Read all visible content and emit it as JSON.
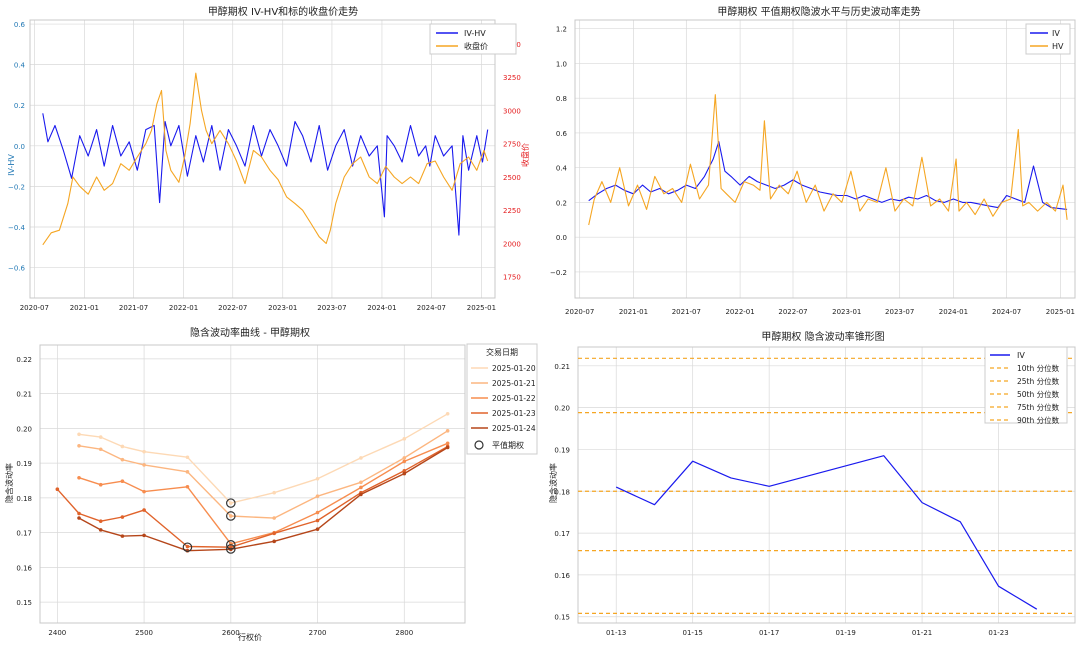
{
  "colors": {
    "iv_blue": "#1a1aee",
    "close_orange": "#f5a623",
    "red_axis": "#e41a1c",
    "blue_axis": "#1f77b4",
    "grid": "#d9d9d9",
    "frame": "#c8c8c8",
    "smile_palette": [
      "#fdd9b5",
      "#fcb680",
      "#f78d4f",
      "#e0632b",
      "#b5461a"
    ]
  },
  "chart_data": [
    {
      "id": "p1",
      "type": "line",
      "title": "甲醇期权 IV-HV和标的收盘价走势",
      "ylabel_left": "IV-HV",
      "ylabel_right": "收盘价",
      "left_ylim": [
        -0.75,
        0.62
      ],
      "left_ticks": [
        -0.6,
        -0.4,
        -0.2,
        0.0,
        0.2,
        0.4,
        0.6
      ],
      "left_tick_labels": [
        "−0.6",
        "−0.4",
        "−0.2",
        "0.0",
        "0.2",
        "0.4",
        "0.6"
      ],
      "right_ylim": [
        1590,
        3680
      ],
      "right_ticks": [
        1750,
        2000,
        2250,
        2500,
        2750,
        3000,
        3250,
        3500
      ],
      "x_range": [
        "2020-06-15",
        "2025-02-20"
      ],
      "x_ticks": [
        "2020-07",
        "2021-01",
        "2021-07",
        "2022-01",
        "2022-07",
        "2023-01",
        "2023-07",
        "2024-01",
        "2024-07",
        "2025-01"
      ],
      "legend": [
        "IV-HV",
        "收盘价"
      ],
      "legend_position": "top-right",
      "grid": true,
      "series_iv_hv": {
        "x": [
          "2020-08-01",
          "2020-08-20",
          "2020-09-15",
          "2020-10-15",
          "2020-11-15",
          "2020-12-15",
          "2021-01-15",
          "2021-02-15",
          "2021-03-15",
          "2021-04-15",
          "2021-05-15",
          "2021-06-15",
          "2021-07-15",
          "2021-08-15",
          "2021-09-15",
          "2021-10-05",
          "2021-10-25",
          "2021-11-15",
          "2021-12-15",
          "2022-01-15",
          "2022-02-15",
          "2022-03-15",
          "2022-04-15",
          "2022-05-15",
          "2022-06-15",
          "2022-07-15",
          "2022-08-15",
          "2022-09-15",
          "2022-10-15",
          "2022-11-15",
          "2022-12-15",
          "2023-01-15",
          "2023-02-15",
          "2023-03-15",
          "2023-04-15",
          "2023-05-15",
          "2023-06-15",
          "2023-07-15",
          "2023-08-15",
          "2023-09-15",
          "2023-10-15",
          "2023-11-15",
          "2023-12-15",
          "2024-01-10",
          "2024-01-20",
          "2024-02-15",
          "2024-03-15",
          "2024-04-15",
          "2024-05-15",
          "2024-06-10",
          "2024-06-25",
          "2024-07-15",
          "2024-08-15",
          "2024-09-15",
          "2024-10-10",
          "2024-10-25",
          "2024-11-15",
          "2024-12-15",
          "2025-01-05",
          "2025-01-24"
        ],
        "values": [
          0.16,
          0.02,
          0.1,
          -0.02,
          -0.16,
          0.05,
          -0.05,
          0.08,
          -0.1,
          0.1,
          -0.05,
          0.02,
          -0.12,
          0.08,
          0.1,
          -0.28,
          0.12,
          0.0,
          0.1,
          -0.15,
          0.05,
          -0.08,
          0.1,
          -0.12,
          0.08,
          0.0,
          -0.1,
          0.1,
          -0.05,
          0.08,
          0.0,
          -0.1,
          0.12,
          0.05,
          -0.08,
          0.1,
          -0.12,
          0.0,
          0.08,
          -0.1,
          0.05,
          -0.05,
          0.0,
          -0.35,
          0.05,
          0.0,
          -0.08,
          0.1,
          -0.05,
          0.0,
          -0.1,
          0.05,
          -0.05,
          0.0,
          -0.44,
          0.05,
          -0.12,
          0.05,
          -0.08,
          0.08
        ]
      },
      "series_close": {
        "x": [
          "2020-08-01",
          "2020-09-01",
          "2020-10-01",
          "2020-11-01",
          "2020-11-20",
          "2020-12-15",
          "2021-01-15",
          "2021-02-15",
          "2021-03-15",
          "2021-04-15",
          "2021-05-15",
          "2021-06-15",
          "2021-07-15",
          "2021-08-15",
          "2021-09-05",
          "2021-09-25",
          "2021-10-12",
          "2021-10-28",
          "2021-11-15",
          "2021-12-15",
          "2022-01-05",
          "2022-01-25",
          "2022-02-15",
          "2022-03-08",
          "2022-03-25",
          "2022-04-15",
          "2022-05-15",
          "2022-06-15",
          "2022-07-15",
          "2022-08-15",
          "2022-09-15",
          "2022-10-15",
          "2022-11-15",
          "2022-12-15",
          "2023-01-15",
          "2023-02-15",
          "2023-03-15",
          "2023-04-15",
          "2023-05-15",
          "2023-06-10",
          "2023-06-25",
          "2023-07-15",
          "2023-08-15",
          "2023-09-15",
          "2023-10-15",
          "2023-11-15",
          "2023-12-15",
          "2024-01-15",
          "2024-02-15",
          "2024-03-15",
          "2024-04-15",
          "2024-05-15",
          "2024-06-15",
          "2024-07-15",
          "2024-08-15",
          "2024-09-15",
          "2024-10-15",
          "2024-11-15",
          "2024-12-15",
          "2025-01-10",
          "2025-01-24"
        ],
        "values": [
          1990,
          2080,
          2100,
          2300,
          2500,
          2430,
          2370,
          2500,
          2400,
          2450,
          2600,
          2550,
          2650,
          2750,
          2850,
          3050,
          3150,
          2700,
          2550,
          2460,
          2650,
          2900,
          3280,
          3000,
          2850,
          2750,
          2850,
          2750,
          2620,
          2450,
          2700,
          2650,
          2550,
          2480,
          2350,
          2300,
          2250,
          2150,
          2050,
          2000,
          2100,
          2300,
          2500,
          2600,
          2650,
          2500,
          2450,
          2580,
          2500,
          2450,
          2500,
          2450,
          2600,
          2620,
          2500,
          2400,
          2600,
          2650,
          2550,
          2700,
          2620
        ]
      }
    },
    {
      "id": "p2",
      "type": "line",
      "title": "甲醇期权 平值期权隐波水平与历史波动率走势",
      "ylim": [
        -0.35,
        1.25
      ],
      "y_ticks": [
        -0.2,
        0.0,
        0.2,
        0.4,
        0.6,
        0.8,
        1.0,
        1.2
      ],
      "y_tick_labels": [
        "−0.2",
        "0.0",
        "0.2",
        "0.4",
        "0.6",
        "0.8",
        "1.0",
        "1.2"
      ],
      "x_range": [
        "2020-06-15",
        "2025-02-20"
      ],
      "x_ticks": [
        "2020-07",
        "2021-01",
        "2021-07",
        "2022-01",
        "2022-07",
        "2023-01",
        "2023-07",
        "2024-01",
        "2024-07",
        "2025-01"
      ],
      "legend": [
        "IV",
        "HV"
      ],
      "legend_position": "top-right",
      "grid": true,
      "series": [
        {
          "name": "IV",
          "x": [
            "2020-08-01",
            "2020-09-01",
            "2020-10-01",
            "2020-11-01",
            "2020-12-01",
            "2021-01-01",
            "2021-02-01",
            "2021-03-01",
            "2021-04-01",
            "2021-05-01",
            "2021-06-01",
            "2021-07-01",
            "2021-08-01",
            "2021-09-01",
            "2021-10-01",
            "2021-10-20",
            "2021-11-10",
            "2021-12-01",
            "2022-01-01",
            "2022-02-01",
            "2022-03-01",
            "2022-04-01",
            "2022-05-01",
            "2022-06-01",
            "2022-07-01",
            "2022-08-01",
            "2022-09-01",
            "2022-10-01",
            "2022-11-01",
            "2022-12-01",
            "2023-01-01",
            "2023-02-01",
            "2023-03-01",
            "2023-04-01",
            "2023-05-01",
            "2023-06-01",
            "2023-07-01",
            "2023-08-01",
            "2023-09-01",
            "2023-10-01",
            "2023-11-01",
            "2023-12-01",
            "2024-01-01",
            "2024-02-01",
            "2024-03-01",
            "2024-04-01",
            "2024-05-01",
            "2024-06-01",
            "2024-07-01",
            "2024-08-01",
            "2024-09-01",
            "2024-10-01",
            "2024-11-01",
            "2024-12-01",
            "2025-01-24"
          ],
          "values": [
            0.21,
            0.25,
            0.28,
            0.3,
            0.27,
            0.25,
            0.3,
            0.26,
            0.28,
            0.25,
            0.27,
            0.3,
            0.28,
            0.35,
            0.45,
            0.55,
            0.38,
            0.35,
            0.3,
            0.35,
            0.32,
            0.3,
            0.28,
            0.3,
            0.33,
            0.3,
            0.28,
            0.26,
            0.25,
            0.24,
            0.24,
            0.22,
            0.24,
            0.22,
            0.2,
            0.22,
            0.21,
            0.23,
            0.22,
            0.24,
            0.21,
            0.2,
            0.22,
            0.2,
            0.2,
            0.19,
            0.18,
            0.17,
            0.24,
            0.22,
            0.2,
            0.41,
            0.2,
            0.17,
            0.16
          ]
        },
        {
          "name": "HV",
          "x": [
            "2020-08-01",
            "2020-08-20",
            "2020-09-15",
            "2020-10-15",
            "2020-11-15",
            "2020-12-15",
            "2021-01-15",
            "2021-02-15",
            "2021-03-15",
            "2021-04-15",
            "2021-05-15",
            "2021-06-15",
            "2021-07-15",
            "2021-08-15",
            "2021-09-15",
            "2021-10-08",
            "2021-10-28",
            "2021-11-15",
            "2021-12-15",
            "2022-01-15",
            "2022-02-15",
            "2022-03-10",
            "2022-03-25",
            "2022-04-15",
            "2022-05-15",
            "2022-06-15",
            "2022-07-15",
            "2022-08-15",
            "2022-09-15",
            "2022-10-15",
            "2022-11-15",
            "2022-12-15",
            "2023-01-15",
            "2023-02-15",
            "2023-03-15",
            "2023-04-15",
            "2023-05-15",
            "2023-06-15",
            "2023-07-15",
            "2023-08-15",
            "2023-09-15",
            "2023-10-15",
            "2023-11-15",
            "2023-12-15",
            "2024-01-10",
            "2024-01-20",
            "2024-02-15",
            "2024-03-15",
            "2024-04-15",
            "2024-05-15",
            "2024-06-15",
            "2024-07-15",
            "2024-08-10",
            "2024-08-25",
            "2024-09-15",
            "2024-10-15",
            "2024-11-15",
            "2024-12-15",
            "2025-01-10",
            "2025-01-24"
          ],
          "values": [
            0.07,
            0.22,
            0.32,
            0.2,
            0.4,
            0.18,
            0.3,
            0.16,
            0.35,
            0.25,
            0.28,
            0.2,
            0.42,
            0.22,
            0.3,
            0.82,
            0.28,
            0.25,
            0.2,
            0.32,
            0.3,
            0.27,
            0.67,
            0.22,
            0.3,
            0.25,
            0.38,
            0.2,
            0.3,
            0.15,
            0.25,
            0.2,
            0.38,
            0.15,
            0.22,
            0.2,
            0.4,
            0.15,
            0.22,
            0.18,
            0.46,
            0.18,
            0.22,
            0.15,
            0.45,
            0.15,
            0.2,
            0.13,
            0.22,
            0.12,
            0.2,
            0.22,
            0.62,
            0.18,
            0.2,
            0.15,
            0.2,
            0.15,
            0.3,
            0.1
          ]
        }
      ]
    },
    {
      "id": "p3",
      "type": "line",
      "title": "隐含波动率曲线 - 甲醇期权",
      "xlabel": "行权价",
      "ylabel": "隐含波动率",
      "xlim": [
        2380,
        2870
      ],
      "ylim": [
        0.144,
        0.224
      ],
      "x_ticks": [
        2400,
        2500,
        2600,
        2700,
        2800
      ],
      "y_ticks": [
        0.15,
        0.16,
        0.17,
        0.18,
        0.19,
        0.2,
        0.21,
        0.22
      ],
      "y_tick_labels": [
        "0.15",
        "0.16",
        "0.17",
        "0.18",
        "0.19",
        "0.20",
        "0.21",
        "0.22"
      ],
      "legend_title": "交易日期",
      "legend_position": "top-right",
      "atm_label": "平值期权",
      "grid": true,
      "series": [
        {
          "name": "2025-01-20",
          "x": [
            2425,
            2450,
            2475,
            2500,
            2550,
            2600,
            2650,
            2700,
            2750,
            2800,
            2850
          ],
          "values": [
            0.1983,
            0.1975,
            0.1948,
            0.1933,
            0.1917,
            0.1785,
            0.1815,
            0.1855,
            0.1915,
            0.197,
            0.2042
          ]
        },
        {
          "name": "2025-01-21",
          "x": [
            2425,
            2450,
            2475,
            2500,
            2550,
            2600,
            2650,
            2700,
            2750,
            2800,
            2850
          ],
          "values": [
            0.195,
            0.194,
            0.191,
            0.1895,
            0.1875,
            0.1748,
            0.1742,
            0.1805,
            0.1845,
            0.1915,
            0.1993
          ]
        },
        {
          "name": "2025-01-22",
          "x": [
            2425,
            2450,
            2475,
            2500,
            2550,
            2600,
            2650,
            2700,
            2750,
            2800,
            2850
          ],
          "values": [
            0.1858,
            0.1838,
            0.1848,
            0.1818,
            0.1832,
            0.1668,
            0.17,
            0.1758,
            0.183,
            0.1905,
            0.1957
          ]
        },
        {
          "name": "2025-01-23",
          "x": [
            2400,
            2425,
            2450,
            2475,
            2500,
            2550,
            2600,
            2650,
            2700,
            2750,
            2800,
            2850
          ],
          "values": [
            0.1825,
            0.1755,
            0.1733,
            0.1745,
            0.1765,
            0.166,
            0.1658,
            0.1698,
            0.1735,
            0.1815,
            0.1878,
            0.1948
          ]
        },
        {
          "name": "2025-01-24",
          "x": [
            2425,
            2450,
            2475,
            2500,
            2550,
            2600,
            2650,
            2700,
            2750,
            2800,
            2850
          ],
          "values": [
            0.1742,
            0.1708,
            0.169,
            0.1692,
            0.1648,
            0.1652,
            0.1675,
            0.171,
            0.181,
            0.187,
            0.1945
          ]
        }
      ],
      "atm_points": [
        {
          "x": 2600,
          "y": 0.1785
        },
        {
          "x": 2600,
          "y": 0.1748
        },
        {
          "x": 2600,
          "y": 0.1665
        },
        {
          "x": 2550,
          "y": 0.1658
        },
        {
          "x": 2600,
          "y": 0.1653
        }
      ]
    },
    {
      "id": "p4",
      "type": "line",
      "title": "甲醇期权 隐含波动率锥形图",
      "ylabel": "隐含波动率",
      "x_dates": [
        "2025-01-13",
        "2025-01-14",
        "2025-01-15",
        "2025-01-16",
        "2025-01-17",
        "2025-01-20",
        "2025-01-21",
        "2025-01-22",
        "2025-01-23",
        "2025-01-24"
      ],
      "x_tick_labels": [
        "01-13",
        "01-15",
        "01-17",
        "01-19",
        "01-21",
        "01-23"
      ],
      "x_tick_dates": [
        "2025-01-13",
        "2025-01-15",
        "2025-01-17",
        "2025-01-19",
        "2025-01-21",
        "2025-01-23"
      ],
      "xlim": [
        "2025-01-12",
        "2025-01-25"
      ],
      "ylim": [
        0.1485,
        0.2145
      ],
      "y_ticks": [
        0.15,
        0.16,
        0.17,
        0.18,
        0.19,
        0.2,
        0.21
      ],
      "y_tick_labels": [
        "0.15",
        "0.16",
        "0.17",
        "0.18",
        "0.19",
        "0.20",
        "0.21"
      ],
      "legend_position": "top-right",
      "grid": true,
      "series": [
        {
          "name": "IV",
          "values": [
            0.181,
            0.1768,
            0.1872,
            0.1832,
            0.1812,
            0.1885,
            0.1773,
            0.1727,
            0.1573,
            0.1518
          ]
        }
      ],
      "percentiles": [
        {
          "name": "10th 分位数",
          "value": 0.1508
        },
        {
          "name": "25th 分位数",
          "value": 0.1658
        },
        {
          "name": "50th 分位数",
          "value": 0.18
        },
        {
          "name": "75th 分位数",
          "value": 0.1988
        },
        {
          "name": "90th 分位数",
          "value": 0.2118
        }
      ]
    }
  ]
}
